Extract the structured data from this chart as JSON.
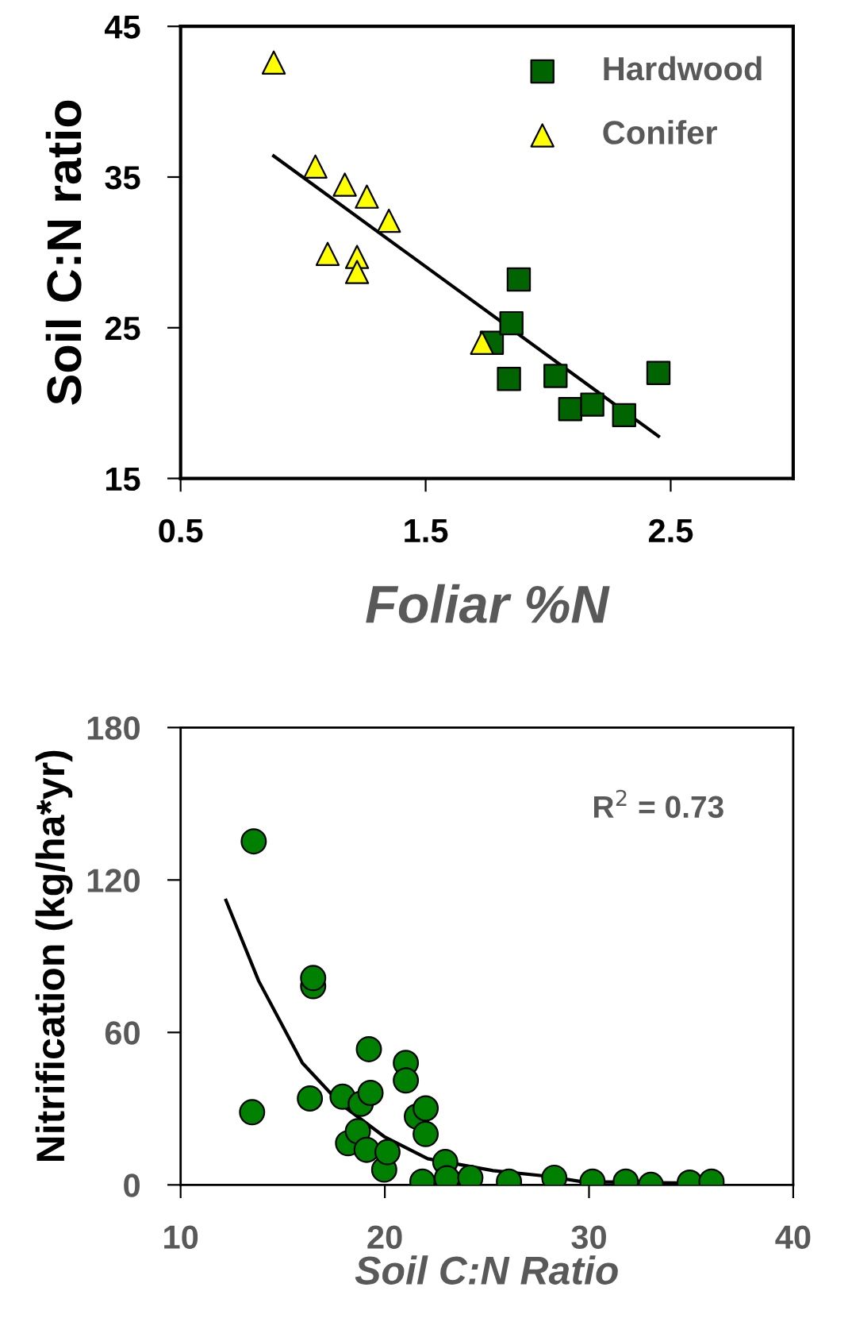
{
  "chart_data": [
    {
      "type": "scatter",
      "xlabel": "Foliar %N",
      "ylabel": "Soil C:N ratio",
      "xlim": [
        0.5,
        3.0
      ],
      "ylim": [
        15,
        45
      ],
      "xticks": [
        0.5,
        1.5,
        2.5
      ],
      "yticks": [
        15,
        25,
        35,
        45
      ],
      "legend": "top right",
      "grid": false,
      "series": [
        {
          "name": "Hardwood",
          "marker": "square",
          "color": "#006400",
          "x": [
            1.77,
            1.88,
            1.85,
            1.84,
            2.03,
            2.09,
            2.18,
            2.31,
            2.45
          ],
          "values": [
            24.0,
            28.2,
            25.3,
            21.6,
            21.8,
            19.6,
            19.9,
            19.2,
            22.0
          ]
        },
        {
          "name": "Conifer",
          "marker": "triangle",
          "color": "#ffff00",
          "x": [
            0.88,
            1.05,
            1.17,
            1.26,
            1.35,
            1.1,
            1.22,
            1.22,
            1.73
          ],
          "values": [
            42.6,
            35.7,
            34.5,
            33.7,
            32.1,
            29.9,
            29.7,
            28.7,
            24.0
          ]
        },
        {
          "type": "line",
          "marker": "none",
          "color": "#000000",
          "x": [
            0.88,
            2.45
          ],
          "values": [
            36.4,
            17.8
          ]
        }
      ]
    },
    {
      "type": "scatter",
      "xlabel": "Soil C:N Ratio",
      "ylabel": "Nitrification (kg/ha*yr)",
      "xlim": [
        10,
        40
      ],
      "ylim": [
        0,
        180
      ],
      "xticks": [
        10,
        20,
        30,
        40
      ],
      "yticks": [
        0,
        60,
        120,
        180
      ],
      "legend": false,
      "grid": false,
      "annotations": [
        "R$^{2}$ = 0.73"
      ],
      "series": [
        {
          "marker": "circle",
          "color": "#008000",
          "x": [
            13.58,
            13.5,
            16.33,
            16.49,
            16.49,
            17.93,
            18.82,
            18.2,
            18.68,
            19.11,
            19.22,
            19.3,
            19.97,
            20.13,
            21.03,
            21.03,
            21.57,
            22.0,
            22.0,
            21.84,
            22.96,
            23.04,
            24.19,
            26.08,
            28.3,
            30.17,
            31.8,
            33.03,
            34.93,
            36.0
          ],
          "values": [
            135.2,
            28.6,
            34.0,
            78.2,
            81.4,
            34.7,
            31.9,
            16.4,
            21.1,
            13.8,
            53.4,
            36.2,
            6.0,
            12.9,
            48.0,
            41.1,
            26.9,
            30.1,
            20.0,
            1.3,
            9.0,
            2.6,
            2.8,
            1.3,
            2.8,
            1.3,
            1.3,
            0,
            0.9,
            1.3
          ]
        },
        {
          "type": "line",
          "marker": "none",
          "color": "#000000",
          "x": [
            12.22,
            13.82,
            15.96,
            17.83,
            19.97,
            22.1,
            25.3,
            27.98,
            29.6,
            33.3,
            36.0
          ],
          "values": [
            112,
            80.3,
            48.0,
            31.9,
            19.0,
            10.3,
            5.6,
            3.4,
            1.3,
            0.9,
            0.6
          ]
        }
      ]
    }
  ]
}
